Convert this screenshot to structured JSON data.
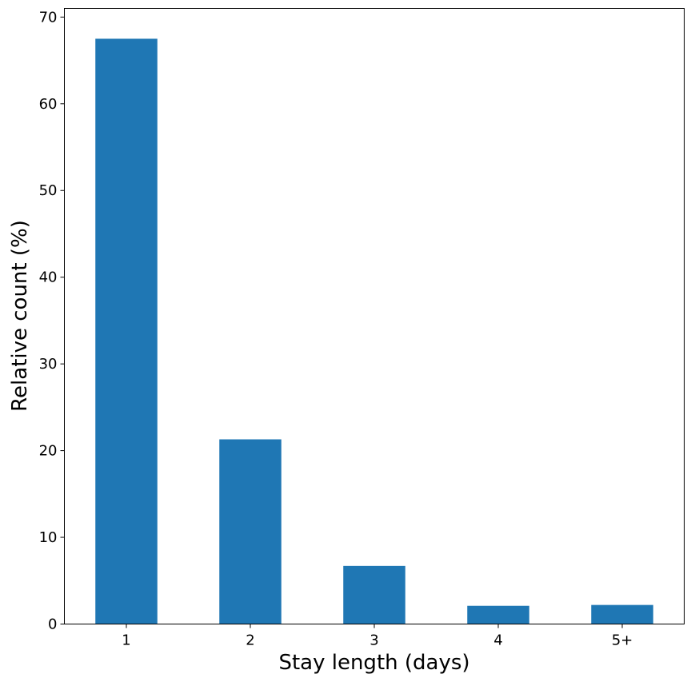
{
  "chart_data": {
    "type": "bar",
    "categories": [
      "1",
      "2",
      "3",
      "4",
      "5+"
    ],
    "values": [
      67.5,
      21.3,
      6.7,
      2.1,
      2.2
    ],
    "xlabel": "Stay length (days)",
    "ylabel": "Relative count (%)",
    "ylim": [
      0,
      71
    ],
    "yticks": [
      0,
      10,
      20,
      30,
      40,
      50,
      60,
      70
    ],
    "grid": false,
    "bar_color": "#1f77b4"
  }
}
